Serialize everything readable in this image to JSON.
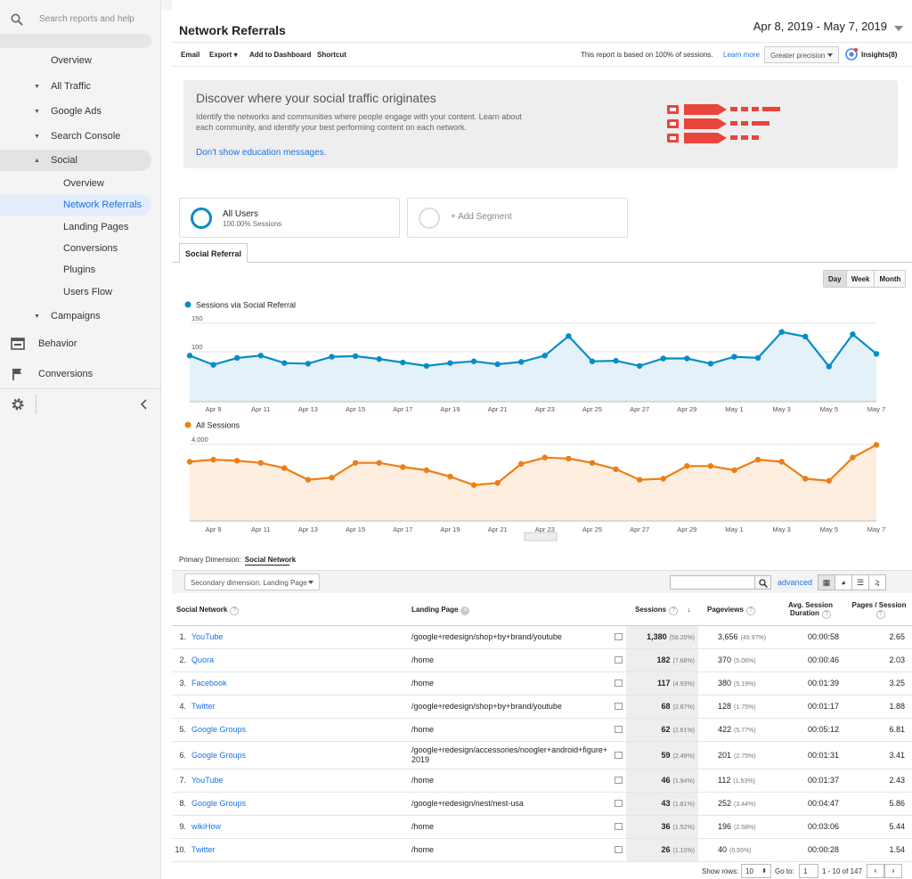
{
  "sidebar": {
    "search_placeholder": "Search reports and help",
    "items": [
      {
        "label": "Overview"
      },
      {
        "label": "All Traffic"
      },
      {
        "label": "Google Ads"
      },
      {
        "label": "Search Console"
      },
      {
        "label": "Social"
      },
      {
        "label": "Overview"
      },
      {
        "label": "Network Referrals"
      },
      {
        "label": "Landing Pages"
      },
      {
        "label": "Conversions"
      },
      {
        "label": "Plugins"
      },
      {
        "label": "Users Flow"
      },
      {
        "label": "Campaigns"
      },
      {
        "label": "Behavior"
      },
      {
        "label": "Conversions"
      }
    ]
  },
  "header": {
    "title": "Network Referrals",
    "date_range": "Apr 8, 2019 - May 7, 2019"
  },
  "toolbar": {
    "email": "Email",
    "export": "Export",
    "add_dashboard": "Add to Dashboard",
    "shortcut": "Shortcut",
    "sample_note": "This report is based on 100% of sessions.",
    "learn_more": "Learn more",
    "precision": "Greater precision",
    "insights": "Insights(8)"
  },
  "education": {
    "heading": "Discover where your social traffic originates",
    "body": "Identify the networks and communities where people engage with your content. Learn about each community, and identify your best performing content on each network.",
    "dismiss": "Don't show education messages."
  },
  "segments": {
    "all_users": "All Users",
    "all_users_sub": "100.00% Sessions",
    "add": "+ Add Segment"
  },
  "tab": "Social Referral",
  "range_buttons": [
    "Day",
    "Week",
    "Month"
  ],
  "colors": {
    "blue": "#058dc7",
    "orange": "#ed7e17",
    "link": "#1a73e8"
  },
  "chart_data": [
    {
      "type": "line",
      "series": [
        {
          "name": "Sessions via Social Referral",
          "values": [
            80,
            64,
            76,
            80,
            67,
            66,
            78,
            79,
            74,
            68,
            62,
            67,
            70,
            65,
            69,
            80,
            114,
            70,
            71,
            62,
            75,
            75,
            66,
            78,
            76,
            121,
            113,
            61,
            117,
            83
          ]
        }
      ],
      "x": [
        "Apr 8",
        "Apr 9",
        "Apr 10",
        "Apr 11",
        "Apr 12",
        "Apr 13",
        "Apr 14",
        "Apr 15",
        "Apr 16",
        "Apr 17",
        "Apr 18",
        "Apr 19",
        "Apr 20",
        "Apr 21",
        "Apr 22",
        "Apr 23",
        "Apr 24",
        "Apr 25",
        "Apr 26",
        "Apr 27",
        "Apr 28",
        "Apr 29",
        "Apr 30",
        "May 1",
        "May 2",
        "May 3",
        "May 4",
        "May 5",
        "May 6",
        "May 7"
      ],
      "tick_labels": [
        "Apr 9",
        "Apr 11",
        "Apr 13",
        "Apr 15",
        "Apr 17",
        "Apr 19",
        "Apr 21",
        "Apr 23",
        "Apr 25",
        "Apr 27",
        "Apr 29",
        "May 1",
        "May 3",
        "May 5",
        "May 7"
      ],
      "y_ticks": [
        "150",
        "100",
        "50"
      ],
      "ylim": [
        0,
        150
      ]
    },
    {
      "type": "line",
      "series": [
        {
          "name": "All Sessions",
          "values": [
            2800,
            2900,
            2850,
            2750,
            2500,
            1950,
            2050,
            2750,
            2750,
            2550,
            2400,
            2100,
            1700,
            1800,
            2700,
            3000,
            2950,
            2750,
            2450,
            1950,
            2000,
            2600,
            2600,
            2400,
            2900,
            2800,
            2000,
            1900,
            3000,
            3600
          ]
        }
      ],
      "x": [
        "Apr 8",
        "Apr 9",
        "Apr 10",
        "Apr 11",
        "Apr 12",
        "Apr 13",
        "Apr 14",
        "Apr 15",
        "Apr 16",
        "Apr 17",
        "Apr 18",
        "Apr 19",
        "Apr 20",
        "Apr 21",
        "Apr 22",
        "Apr 23",
        "Apr 24",
        "Apr 25",
        "Apr 26",
        "Apr 27",
        "Apr 28",
        "Apr 29",
        "Apr 30",
        "May 1",
        "May 2",
        "May 3",
        "May 4",
        "May 5",
        "May 6",
        "May 7"
      ],
      "tick_labels": [
        "Apr 9",
        "Apr 11",
        "Apr 13",
        "Apr 15",
        "Apr 17",
        "Apr 19",
        "Apr 21",
        "Apr 23",
        "Apr 25",
        "Apr 27",
        "Apr 29",
        "May 1",
        "May 3",
        "May 5",
        "May 7"
      ],
      "y_ticks": [
        "4,000",
        "2,000"
      ],
      "ylim": [
        0,
        4000
      ]
    }
  ],
  "primary_dimension": {
    "label": "Primary Dimension:",
    "value": "Social Network"
  },
  "secondary_dimension": "Secondary dimension: Landing Page",
  "advanced": "advanced",
  "table": {
    "headers": {
      "network": "Social Network",
      "landing": "Landing Page",
      "sessions": "Sessions",
      "pageviews": "Pageviews",
      "avg1": "Avg. Session",
      "avg2": "Duration",
      "pps": "Pages / Session"
    },
    "rows": [
      {
        "n": "1.",
        "network": "YouTube",
        "page": "/google+redesign/shop+by+brand/youtube",
        "sessions": "1,380",
        "spct": "(58.20%)",
        "pv": "3,656",
        "pvpct": "(49.97%)",
        "dur": "00:00:58",
        "pps": "2.65"
      },
      {
        "n": "2.",
        "network": "Quora",
        "page": "/home",
        "sessions": "182",
        "spct": "(7.68%)",
        "pv": "370",
        "pvpct": "(5.06%)",
        "dur": "00:00:46",
        "pps": "2.03"
      },
      {
        "n": "3.",
        "network": "Facebook",
        "page": "/home",
        "sessions": "117",
        "spct": "(4.93%)",
        "pv": "380",
        "pvpct": "(5.19%)",
        "dur": "00:01:39",
        "pps": "3.25"
      },
      {
        "n": "4.",
        "network": "Twitter",
        "page": "/google+redesign/shop+by+brand/youtube",
        "sessions": "68",
        "spct": "(2.87%)",
        "pv": "128",
        "pvpct": "(1.75%)",
        "dur": "00:01:17",
        "pps": "1.88"
      },
      {
        "n": "5.",
        "network": "Google Groups",
        "page": "/home",
        "sessions": "62",
        "spct": "(2.61%)",
        "pv": "422",
        "pvpct": "(5.77%)",
        "dur": "00:05:12",
        "pps": "6.81"
      },
      {
        "n": "6.",
        "network": "Google Groups",
        "page": "/google+redesign/accessories/noogler+android+figure+2019",
        "sessions": "59",
        "spct": "(2.49%)",
        "pv": "201",
        "pvpct": "(2.75%)",
        "dur": "00:01:31",
        "pps": "3.41"
      },
      {
        "n": "7.",
        "network": "YouTube",
        "page": "/home",
        "sessions": "46",
        "spct": "(1.94%)",
        "pv": "112",
        "pvpct": "(1.53%)",
        "dur": "00:01:37",
        "pps": "2.43"
      },
      {
        "n": "8.",
        "network": "Google Groups",
        "page": "/google+redesign/nest/nest-usa",
        "sessions": "43",
        "spct": "(1.81%)",
        "pv": "252",
        "pvpct": "(3.44%)",
        "dur": "00:04:47",
        "pps": "5.86"
      },
      {
        "n": "9.",
        "network": "wikiHow",
        "page": "/home",
        "sessions": "36",
        "spct": "(1.52%)",
        "pv": "196",
        "pvpct": "(2.68%)",
        "dur": "00:03:06",
        "pps": "5.44"
      },
      {
        "n": "10.",
        "network": "Twitter",
        "page": "/home",
        "sessions": "26",
        "spct": "(1.10%)",
        "pv": "40",
        "pvpct": "(0.55%)",
        "dur": "00:00:28",
        "pps": "1.54"
      }
    ]
  },
  "pager": {
    "show_rows_label": "Show rows:",
    "rows": "10",
    "goto_label": "Go to:",
    "goto": "1",
    "range": "1 - 10 of 147"
  }
}
